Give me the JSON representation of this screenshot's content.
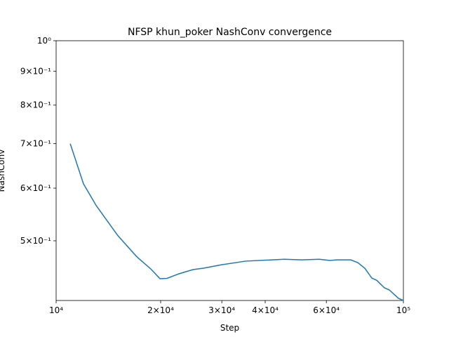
{
  "chart_data": {
    "type": "line",
    "title": "NFSP khun_poker NashConv convergence",
    "xlabel": "Step",
    "ylabel": "NashConv",
    "xscale": "log",
    "yscale": "log",
    "x": [
      10980,
      11990,
      13040,
      15060,
      17080,
      18740,
      19910,
      20860,
      22570,
      24770,
      26560,
      29830,
      35120,
      45360,
      50960,
      57250,
      61370,
      64300,
      70580,
      73900,
      77400,
      81100,
      83800,
      88200,
      91100,
      96800,
      100000
    ],
    "series": [
      {
        "name": "NashConv",
        "color": "#1f77b4",
        "values": [
          0.7,
          0.609,
          0.565,
          0.509,
          0.473,
          0.4535,
          0.4385,
          0.439,
          0.446,
          0.4525,
          0.4547,
          0.46,
          0.466,
          0.469,
          0.468,
          0.469,
          0.467,
          0.468,
          0.468,
          0.4636,
          0.4547,
          0.4395,
          0.436,
          0.4248,
          0.4217,
          0.4096,
          0.4066
        ]
      }
    ],
    "xlim": [
      10000,
      100000
    ],
    "xticks": [
      {
        "value": 10000,
        "label": "10⁴"
      },
      {
        "value": 20000,
        "label": "2×10⁴"
      },
      {
        "value": 30000,
        "label": "3×10⁴"
      },
      {
        "value": 40000,
        "label": "4×10⁴"
      },
      {
        "value": 60000,
        "label": "6×10⁴"
      },
      {
        "value": 100000,
        "label": "10⁵"
      }
    ],
    "ylim": [
      0.4066,
      1
    ],
    "yticks": [
      {
        "value": 1,
        "label": "10⁰"
      },
      {
        "value": 0.9,
        "label": "9×10⁻¹"
      },
      {
        "value": 0.8,
        "label": "8×10⁻¹"
      },
      {
        "value": 0.7,
        "label": "7×10⁻¹"
      },
      {
        "value": 0.6,
        "label": "6×10⁻¹"
      },
      {
        "value": 0.5,
        "label": "5×10⁻¹"
      }
    ]
  }
}
